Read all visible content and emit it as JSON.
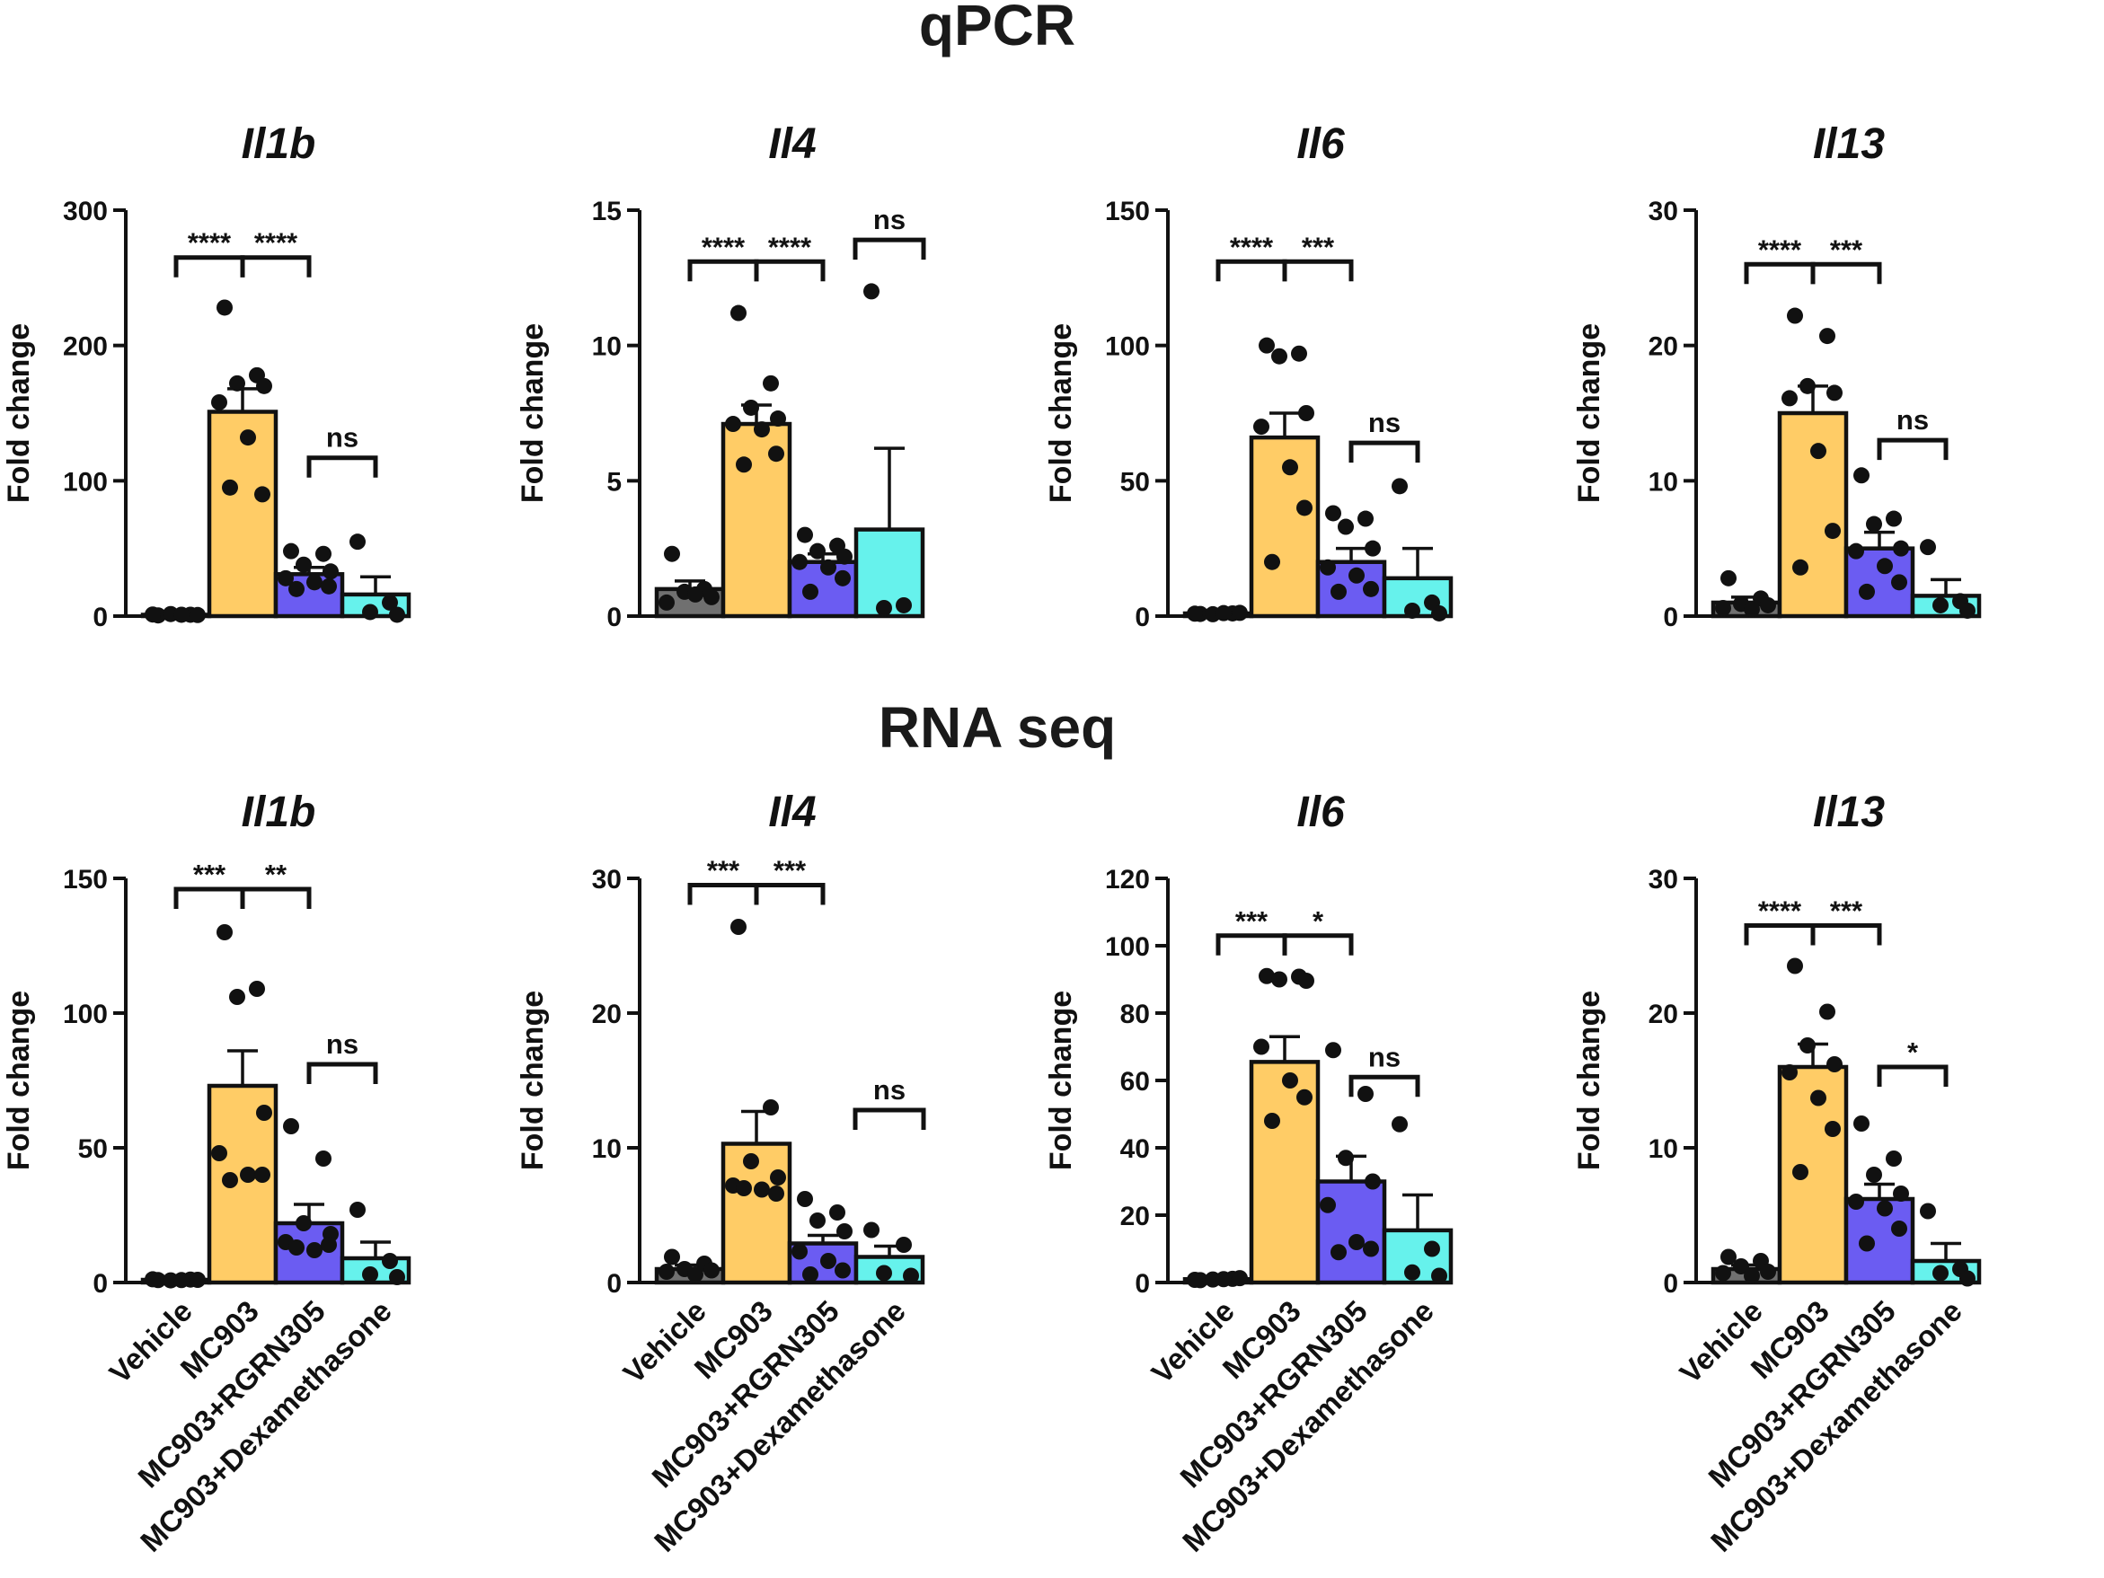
{
  "figure": {
    "sections": [
      {
        "id": "qpcr",
        "title": "qPCR"
      },
      {
        "id": "rnaseq",
        "title": "RNA seq"
      }
    ],
    "colors": {
      "Vehicle": "#707070",
      "MC903": "#FFCC66",
      "MC903+RGRN305": "#6B5CF2",
      "MC903+Dexamethasone": "#66F2EC"
    }
  },
  "chart_data": [
    {
      "section": "qPCR",
      "type": "bar",
      "title": "Il1b",
      "ylabel": "Fold change",
      "categories": [
        "Vehicle",
        "MC903",
        "MC903+RGRN305",
        "MC903+Dexamethasone"
      ],
      "ylim": [
        0,
        300
      ],
      "yticks": [
        "0",
        "100",
        "200",
        "300"
      ],
      "values": [
        1,
        151,
        31,
        16
      ],
      "errors": [
        0.5,
        17,
        5,
        13
      ],
      "points": [
        [
          0.5,
          1,
          1.5,
          0.8,
          1.2,
          1
        ],
        [
          228,
          178,
          172,
          170,
          158,
          132,
          90,
          95
        ],
        [
          48,
          46,
          38,
          33,
          28,
          25,
          22,
          20
        ],
        [
          55,
          10,
          3,
          1
        ]
      ],
      "significance": [
        {
          "from": 0,
          "to": 1,
          "level": 265,
          "label": "****"
        },
        {
          "from": 1,
          "to": 2,
          "level": 265,
          "label": "****"
        },
        {
          "from": 2,
          "to": 3,
          "level": 117,
          "label": "ns"
        }
      ]
    },
    {
      "section": "qPCR",
      "type": "bar",
      "title": "Il4",
      "ylabel": "Fold change",
      "categories": [
        "Vehicle",
        "MC903",
        "MC903+RGRN305",
        "MC903+Dexamethasone"
      ],
      "ylim": [
        0,
        15
      ],
      "yticks": [
        "0",
        "5",
        "10",
        "15"
      ],
      "values": [
        1,
        7.1,
        2,
        3.2
      ],
      "errors": [
        0.3,
        0.7,
        0.3,
        3
      ],
      "points": [
        [
          2.3,
          1.0,
          0.9,
          0.7,
          0.5,
          0.8
        ],
        [
          11.2,
          8.6,
          7.7,
          7.3,
          7.1,
          6.9,
          6.0,
          5.6
        ],
        [
          3.0,
          2.6,
          2.4,
          2.2,
          2.0,
          1.8,
          1.4,
          0.9
        ],
        [
          12,
          0.4,
          0.3
        ]
      ],
      "significance": [
        {
          "from": 0,
          "to": 1,
          "level": 13.1,
          "label": "****"
        },
        {
          "from": 1,
          "to": 2,
          "level": 13.1,
          "label": "****"
        },
        {
          "from": 3,
          "to": 3,
          "level": 13.9,
          "label": "ns"
        }
      ]
    },
    {
      "section": "qPCR",
      "type": "bar",
      "title": "Il6",
      "ylabel": "Fold change",
      "categories": [
        "Vehicle",
        "MC903",
        "MC903+RGRN305",
        "MC903+Dexamethasone"
      ],
      "ylim": [
        0,
        150
      ],
      "yticks": [
        "0",
        "50",
        "100",
        "150"
      ],
      "values": [
        1,
        66,
        20,
        14
      ],
      "errors": [
        0.3,
        9,
        5,
        11
      ],
      "points": [
        [
          0.8,
          1,
          0.7,
          1.2,
          0.9,
          1.1
        ],
        [
          100,
          97,
          96,
          75,
          70,
          55,
          40,
          20
        ],
        [
          38,
          36,
          33,
          25,
          18,
          15,
          10,
          9
        ],
        [
          48,
          5,
          2,
          1
        ]
      ],
      "significance": [
        {
          "from": 0,
          "to": 1,
          "level": 131,
          "label": "****"
        },
        {
          "from": 1,
          "to": 2,
          "level": 131,
          "label": "***"
        },
        {
          "from": 2,
          "to": 3,
          "level": 64,
          "label": "ns"
        }
      ]
    },
    {
      "section": "qPCR",
      "type": "bar",
      "title": "Il13",
      "ylabel": "Fold change",
      "categories": [
        "Vehicle",
        "MC903",
        "MC903+RGRN305",
        "MC903+Dexamethasone"
      ],
      "ylim": [
        0,
        30
      ],
      "yticks": [
        "0",
        "10",
        "20",
        "30"
      ],
      "values": [
        1,
        15,
        5,
        1.5
      ],
      "errors": [
        0.4,
        2,
        1.2,
        1.2
      ],
      "points": [
        [
          2.8,
          1.3,
          0.9,
          0.8,
          0.6,
          0.5
        ],
        [
          22.2,
          20.7,
          17.0,
          16.5,
          16.1,
          12.2,
          6.3,
          3.6
        ],
        [
          10.4,
          7.2,
          6.8,
          5.0,
          4.8,
          3.7,
          2.5,
          1.8
        ],
        [
          5.1,
          1.1,
          0.8,
          0.4
        ]
      ],
      "significance": [
        {
          "from": 0,
          "to": 1,
          "level": 26,
          "label": "****"
        },
        {
          "from": 1,
          "to": 2,
          "level": 26,
          "label": "***"
        },
        {
          "from": 2,
          "to": 3,
          "level": 13,
          "label": "ns"
        }
      ]
    },
    {
      "section": "RNA seq",
      "type": "bar",
      "title": "Il1b",
      "ylabel": "Fold change",
      "categories": [
        "Vehicle",
        "MC903",
        "MC903+RGRN305",
        "MC903+Dexamethasone"
      ],
      "ylim": [
        0,
        150
      ],
      "yticks": [
        "0",
        "50",
        "100",
        "150"
      ],
      "values": [
        1,
        73,
        22,
        9
      ],
      "errors": [
        0.3,
        13,
        7,
        6
      ],
      "points": [
        [
          0.9,
          1.1,
          0.8,
          1,
          1.2,
          0.9
        ],
        [
          130,
          109,
          106,
          63,
          48,
          40,
          40,
          38
        ],
        [
          58,
          46,
          22,
          18,
          15,
          12,
          14,
          13
        ],
        [
          27,
          8,
          3,
          2
        ]
      ],
      "significance": [
        {
          "from": 0,
          "to": 1,
          "level": 146,
          "label": "***"
        },
        {
          "from": 1,
          "to": 2,
          "level": 146,
          "label": "**"
        },
        {
          "from": 2,
          "to": 3,
          "level": 81,
          "label": "ns"
        }
      ]
    },
    {
      "section": "RNA seq",
      "type": "bar",
      "title": "Il4",
      "ylabel": "Fold change",
      "categories": [
        "Vehicle",
        "MC903",
        "MC903+RGRN305",
        "MC903+Dexamethasone"
      ],
      "ylim": [
        0,
        30
      ],
      "yticks": [
        "0",
        "10",
        "20",
        "30"
      ],
      "values": [
        1,
        10.3,
        2.9,
        1.9
      ],
      "errors": [
        0.3,
        2.4,
        0.6,
        0.8
      ],
      "points": [
        [
          1.9,
          1.4,
          1.0,
          0.9,
          0.8,
          0.6
        ],
        [
          26.4,
          13.0,
          9.0,
          7.8,
          7.2,
          6.9,
          6.6,
          7.0
        ],
        [
          6.2,
          5.2,
          4.6,
          3.8,
          2.3,
          1.6,
          0.9,
          0.6
        ],
        [
          3.9,
          2.8,
          0.7,
          0.5
        ]
      ],
      "significance": [
        {
          "from": 0,
          "to": 1,
          "level": 29.5,
          "label": "***"
        },
        {
          "from": 1,
          "to": 2,
          "level": 29.5,
          "label": "***"
        },
        {
          "from": 3,
          "to": 3,
          "level": 12.8,
          "label": "ns"
        }
      ]
    },
    {
      "section": "RNA seq",
      "type": "bar",
      "title": "Il6",
      "ylabel": "Fold change",
      "categories": [
        "Vehicle",
        "MC903",
        "MC903+RGRN305",
        "MC903+Dexamethasone"
      ],
      "ylim": [
        0,
        120
      ],
      "yticks": [
        "0",
        "20",
        "40",
        "60",
        "80",
        "100",
        "120"
      ],
      "values": [
        1,
        65.5,
        30,
        15.5
      ],
      "errors": [
        0.3,
        7.5,
        7.5,
        10.5
      ],
      "points": [
        [
          0.7,
          1.1,
          0.9,
          1.3,
          0.8,
          1.0
        ],
        [
          91,
          90.8,
          90,
          89.6,
          70,
          60,
          55,
          48
        ],
        [
          69,
          56,
          37,
          30,
          23,
          12,
          10,
          9
        ],
        [
          47,
          10,
          3,
          2
        ]
      ],
      "significance": [
        {
          "from": 0,
          "to": 1,
          "level": 103,
          "label": "***"
        },
        {
          "from": 1,
          "to": 2,
          "level": 103,
          "label": "*"
        },
        {
          "from": 2,
          "to": 3,
          "level": 61,
          "label": "ns"
        }
      ]
    },
    {
      "section": "RNA seq",
      "type": "bar",
      "title": "Il13",
      "ylabel": "Fold change",
      "categories": [
        "Vehicle",
        "MC903",
        "MC903+RGRN305",
        "MC903+Dexamethasone"
      ],
      "ylim": [
        0,
        30
      ],
      "yticks": [
        "0",
        "10",
        "20",
        "30"
      ],
      "values": [
        1,
        16,
        6.2,
        1.6
      ],
      "errors": [
        0.3,
        1.7,
        1.1,
        1.3
      ],
      "points": [
        [
          1.9,
          1.6,
          1.2,
          0.8,
          0.7,
          0.5
        ],
        [
          23.5,
          20.1,
          17.6,
          16.2,
          15.6,
          13.7,
          11.4,
          8.2
        ],
        [
          11.8,
          9.2,
          8.0,
          6.6,
          6.0,
          5.5,
          4.0,
          2.9
        ],
        [
          5.3,
          1.0,
          0.7,
          0.3
        ]
      ],
      "significance": [
        {
          "from": 0,
          "to": 1,
          "level": 26.5,
          "label": "****"
        },
        {
          "from": 1,
          "to": 2,
          "level": 26.5,
          "label": "***"
        },
        {
          "from": 2,
          "to": 3,
          "level": 16,
          "label": "*"
        }
      ]
    }
  ]
}
